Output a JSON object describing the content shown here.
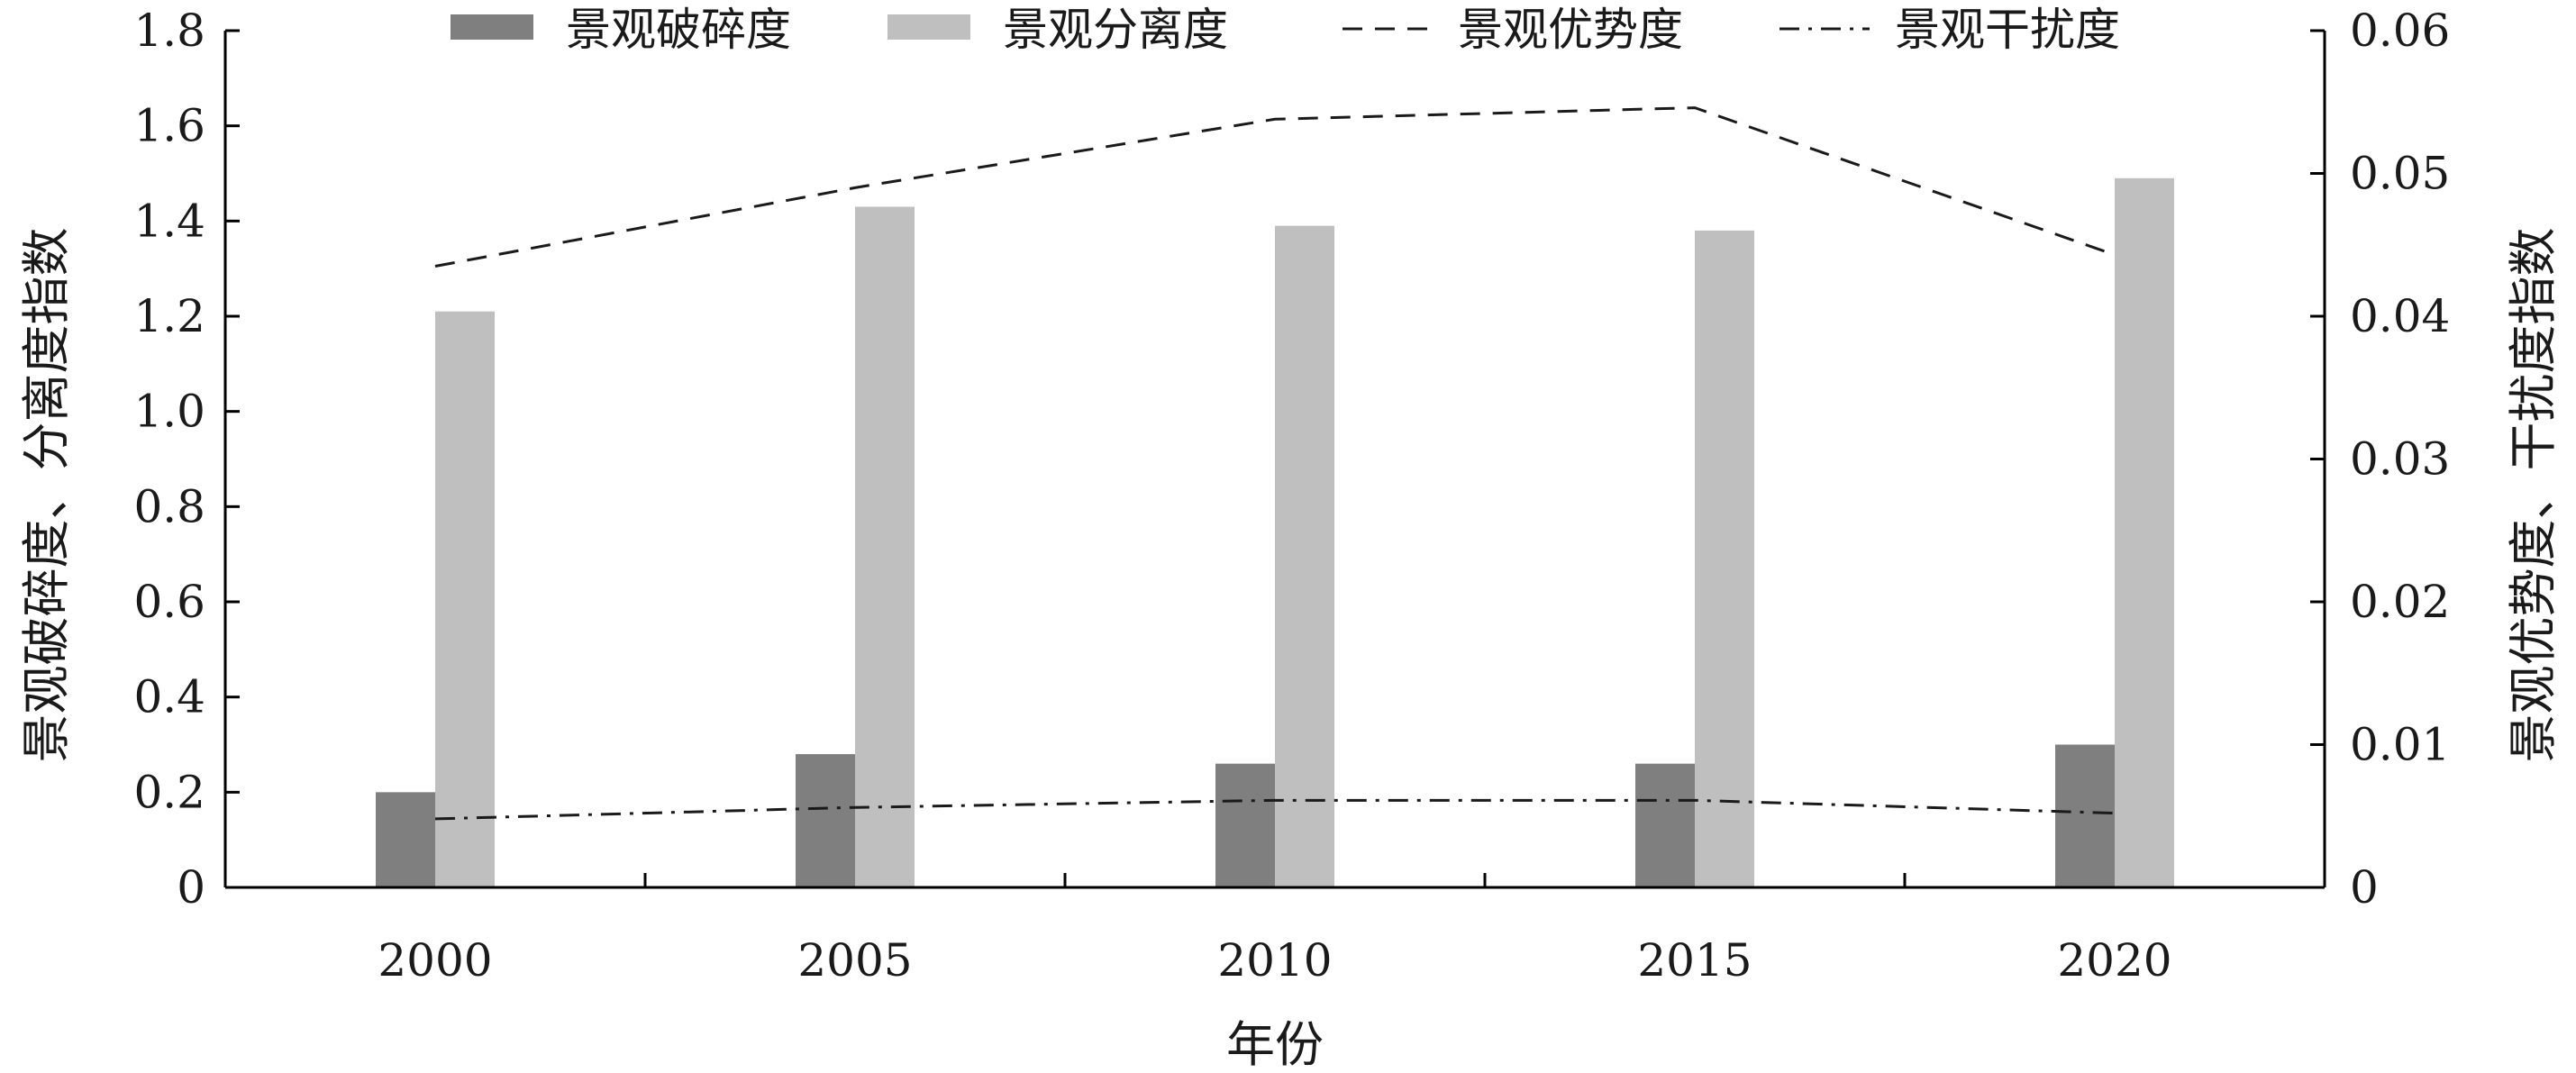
{
  "chart_data": {
    "type": "bar",
    "categories": [
      "2000",
      "2005",
      "2010",
      "2015",
      "2020"
    ],
    "xlabel": "年份",
    "ylabel_left": "景观破碎度、分离度指数",
    "ylabel_right": "景观优势度、干扰度指数",
    "ylim_left": [
      0,
      1.8
    ],
    "ylim_right": [
      0,
      0.06
    ],
    "yticks_left": [
      "0",
      "0.2",
      "0.4",
      "0.6",
      "0.8",
      "1.0",
      "1.2",
      "1.4",
      "1.6",
      "1.8"
    ],
    "yticks_right": [
      "0",
      "0.01",
      "0.02",
      "0.03",
      "0.04",
      "0.05",
      "0.06"
    ],
    "legend_position": "top",
    "grid": false,
    "series": [
      {
        "name": "景观破碎度",
        "kind": "bar",
        "axis": "left",
        "color": "#7f7f7f",
        "values": [
          0.2,
          0.28,
          0.26,
          0.26,
          0.3
        ]
      },
      {
        "name": "景观分离度",
        "kind": "bar",
        "axis": "left",
        "color": "#bfbfbf",
        "values": [
          1.21,
          1.43,
          1.39,
          1.38,
          1.49
        ]
      },
      {
        "name": "景观优势度",
        "kind": "line",
        "axis": "right",
        "color": "#1a1a1a",
        "dash": "dashed",
        "values": [
          0.0435,
          0.049,
          0.0538,
          0.0546,
          0.0443
        ]
      },
      {
        "name": "景观干扰度",
        "kind": "line",
        "axis": "right",
        "color": "#1a1a1a",
        "dash": "dash-dot",
        "values": [
          0.0048,
          0.0056,
          0.0061,
          0.0061,
          0.0052
        ]
      }
    ]
  }
}
